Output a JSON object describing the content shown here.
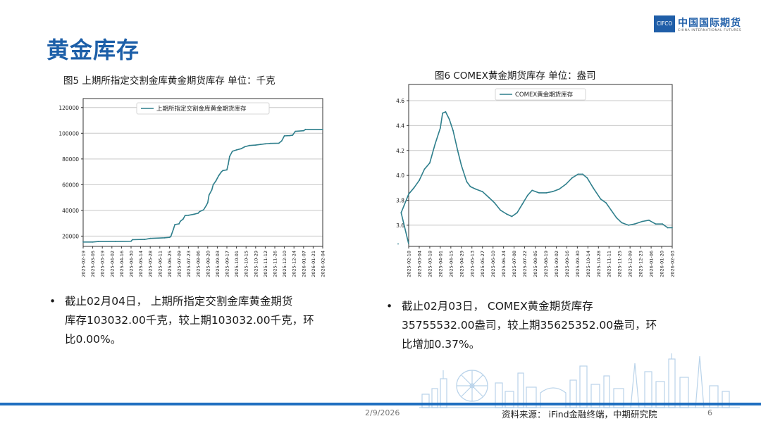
{
  "title": "黄金库存",
  "logo": {
    "box_text": "CIFCO",
    "cn": "中国国际期货",
    "en": "CHINA INTERNATIONAL FUTURES"
  },
  "chart_data": [
    {
      "type": "line",
      "caption": "图5 上期所指定交割金库黄金期货库存 单位：千克",
      "legend": "上期所指定交割金库黄金期货库存",
      "legend_position": "top-center",
      "grid": "horizontal",
      "ylim": [
        12000,
        127000
      ],
      "yticks": [
        20000,
        40000,
        60000,
        80000,
        100000,
        120000
      ],
      "xticks": [
        "2025-02-19",
        "2025-03-05",
        "2025-03-19",
        "2025-04-02",
        "2025-04-16",
        "2025-04-30",
        "2025-05-14",
        "2025-05-28",
        "2025-06-11",
        "2025-06-25",
        "2025-07-09",
        "2025-07-23",
        "2025-08-06",
        "2025-08-20",
        "2025-09-03",
        "2025-09-17",
        "2025-10-01",
        "2025-10-15",
        "2025-10-29",
        "2025-11-12",
        "2025-11-26",
        "2025-12-10",
        "2025-12-24",
        "2026-01-07",
        "2026-01-21",
        "2026-02-04"
      ],
      "series": [
        {
          "name": "上期所指定交割金库黄金期货库存",
          "points": [
            [
              "2025-02-19",
              15400
            ],
            [
              "2025-03-05",
              15400
            ],
            [
              "2025-03-13",
              15800
            ],
            [
              "2025-04-07",
              15900
            ],
            [
              "2025-04-30",
              16000
            ],
            [
              "2025-05-02",
              17200
            ],
            [
              "2025-05-20",
              17400
            ],
            [
              "2025-05-28",
              18200
            ],
            [
              "2025-06-18",
              18700
            ],
            [
              "2025-06-25",
              19000
            ],
            [
              "2025-06-27",
              19500
            ],
            [
              "2025-07-01",
              25500
            ],
            [
              "2025-07-03",
              29000
            ],
            [
              "2025-07-09",
              29500
            ],
            [
              "2025-07-11",
              31500
            ],
            [
              "2025-07-15",
              33200
            ],
            [
              "2025-07-18",
              36000
            ],
            [
              "2025-07-23",
              36200
            ],
            [
              "2025-07-31",
              37000
            ],
            [
              "2025-08-06",
              37800
            ],
            [
              "2025-08-08",
              39000
            ],
            [
              "2025-08-14",
              40500
            ],
            [
              "2025-08-18",
              44000
            ],
            [
              "2025-08-20",
              46000
            ],
            [
              "2025-08-22",
              52000
            ],
            [
              "2025-08-26",
              56000
            ],
            [
              "2025-08-28",
              60000
            ],
            [
              "2025-09-01",
              63000
            ],
            [
              "2025-09-03",
              65000
            ],
            [
              "2025-09-05",
              67000
            ],
            [
              "2025-09-09",
              70000
            ],
            [
              "2025-09-11",
              71000
            ],
            [
              "2025-09-17",
              71500
            ],
            [
              "2025-09-19",
              76000
            ],
            [
              "2025-09-21",
              82000
            ],
            [
              "2025-09-25",
              86000
            ],
            [
              "2025-10-01",
              87000
            ],
            [
              "2025-10-08",
              88000
            ],
            [
              "2025-10-13",
              89500
            ],
            [
              "2025-10-20",
              90500
            ],
            [
              "2025-10-29",
              90800
            ],
            [
              "2025-11-05",
              91300
            ],
            [
              "2025-11-12",
              91800
            ],
            [
              "2025-11-20",
              92100
            ],
            [
              "2025-12-02",
              92300
            ],
            [
              "2025-12-06",
              94000
            ],
            [
              "2025-12-10",
              98000
            ],
            [
              "2025-12-18",
              98200
            ],
            [
              "2025-12-22",
              98500
            ],
            [
              "2025-12-26",
              101500
            ],
            [
              "2026-01-07",
              102000
            ],
            [
              "2026-01-10",
              103000
            ],
            [
              "2026-02-04",
              103032
            ]
          ]
        }
      ]
    },
    {
      "type": "line",
      "caption": "图6 COMEX黄金期货库存 单位：盎司",
      "legend": "COMEX黄金期货库存",
      "legend_position": "top-center",
      "grid": "horizontal",
      "ylim": [
        3.43,
        4.73
      ],
      "yticks": [
        3.6,
        3.8,
        4.0,
        4.2,
        4.4,
        4.6
      ],
      "xticks": [
        "2025-02-18",
        "2025-03-04",
        "2025-03-18",
        "2025-04-01",
        "2025-04-15",
        "2025-04-29",
        "2025-05-13",
        "2025-05-27",
        "2025-06-10",
        "2025-06-24",
        "2025-07-08",
        "2025-07-22",
        "2025-08-05",
        "2025-08-19",
        "2025-09-02",
        "2025-09-16",
        "2025-09-30",
        "2025-10-14",
        "2025-10-28",
        "2025-11-11",
        "2025-11-25",
        "2025-12-09",
        "2025-12-23",
        "2026-01-06",
        "2026-01-20",
        "2026-02-03"
      ],
      "series": [
        {
          "name": "COMEX黄金期货库存",
          "points": [
            [
              "2025-02-04",
              3.45
            ],
            [
              "2025-02-08",
              3.7
            ],
            [
              "2025-02-12",
              3.76
            ],
            [
              "2025-02-18",
              3.85
            ],
            [
              "2025-02-25",
              3.9
            ],
            [
              "2025-03-04",
              3.96
            ],
            [
              "2025-03-11",
              4.05
            ],
            [
              "2025-03-18",
              4.1
            ],
            [
              "2025-03-25",
              4.25
            ],
            [
              "2025-04-01",
              4.38
            ],
            [
              "2025-04-04",
              4.5
            ],
            [
              "2025-04-08",
              4.51
            ],
            [
              "2025-04-13",
              4.45
            ],
            [
              "2025-04-18",
              4.36
            ],
            [
              "2025-04-24",
              4.2
            ],
            [
              "2025-04-29",
              4.08
            ],
            [
              "2025-05-06",
              3.95
            ],
            [
              "2025-05-11",
              3.91
            ],
            [
              "2025-05-18",
              3.89
            ],
            [
              "2025-05-27",
              3.87
            ],
            [
              "2025-06-05",
              3.82
            ],
            [
              "2025-06-12",
              3.78
            ],
            [
              "2025-06-20",
              3.72
            ],
            [
              "2025-06-28",
              3.69
            ],
            [
              "2025-07-05",
              3.67
            ],
            [
              "2025-07-12",
              3.7
            ],
            [
              "2025-07-19",
              3.77
            ],
            [
              "2025-07-26",
              3.84
            ],
            [
              "2025-08-01",
              3.88
            ],
            [
              "2025-08-10",
              3.86
            ],
            [
              "2025-08-20",
              3.86
            ],
            [
              "2025-08-28",
              3.87
            ],
            [
              "2025-09-06",
              3.89
            ],
            [
              "2025-09-15",
              3.93
            ],
            [
              "2025-09-23",
              3.98
            ],
            [
              "2025-10-01",
              4.01
            ],
            [
              "2025-10-07",
              4.01
            ],
            [
              "2025-10-13",
              3.98
            ],
            [
              "2025-10-21",
              3.9
            ],
            [
              "2025-10-31",
              3.81
            ],
            [
              "2025-11-07",
              3.78
            ],
            [
              "2025-11-14",
              3.72
            ],
            [
              "2025-11-21",
              3.66
            ],
            [
              "2025-11-28",
              3.62
            ],
            [
              "2025-12-07",
              3.6
            ],
            [
              "2025-12-15",
              3.61
            ],
            [
              "2025-12-25",
              3.63
            ],
            [
              "2026-01-03",
              3.64
            ],
            [
              "2026-01-12",
              3.61
            ],
            [
              "2026-01-21",
              3.61
            ],
            [
              "2026-01-28",
              3.58
            ],
            [
              "2026-02-03",
              3.58
            ]
          ]
        }
      ]
    }
  ],
  "bullets": [
    {
      "lines": [
        "截止02月04日， 上期所指定交割金库黄金期货",
        "库存103032.00千克，较上期103032.00千克，环",
        "比0.00%。"
      ]
    },
    {
      "lines": [
        "截止02月03日， COMEX黄金期货库存",
        "35755532.00盎司，较上期35625352.00盎司，环",
        "比增加0.37%。"
      ]
    }
  ],
  "footer": {
    "date": "2/9/2026",
    "source": "资料来源： iFind金融终端，中期研究院",
    "page": "6"
  },
  "colors": {
    "title": "#1d5fa8",
    "line": "#2f7f8c",
    "accent_bar": "#1f6fc0",
    "grid": "#c8c8c8"
  }
}
